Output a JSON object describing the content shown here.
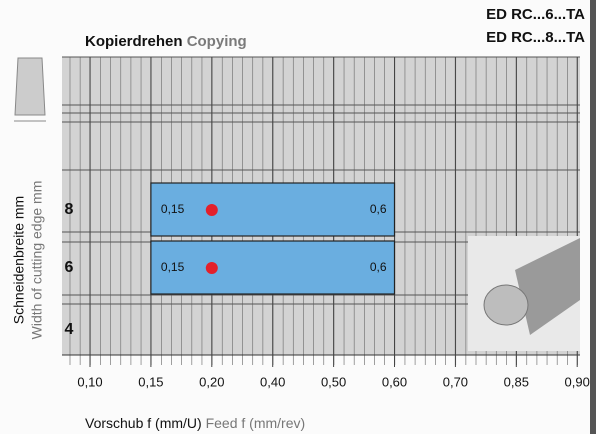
{
  "chart_data": {
    "type": "range",
    "header": [
      "ED RC...6...TA",
      "ED RC...8...TA"
    ],
    "title": "Kopierdrehen",
    "subtitle": "Copying",
    "y_label": "Schneidenbreite mm",
    "y_label_en": "Width of cutting edge mm",
    "x_label": "Vorschub f (mm/U)",
    "x_label_en": "Feed f (mm/rev)",
    "categories": [
      "8",
      "6",
      "4"
    ],
    "start": {
      "values": [
        0.15,
        0.15,
        null
      ],
      "value_labels": [
        "0,15",
        "0,15",
        null
      ]
    },
    "end": {
      "values": [
        0.6,
        0.6,
        null
      ],
      "value_labels": [
        "0,6",
        "0,6",
        null
      ]
    },
    "recommended": [
      0.2,
      0.2,
      null
    ],
    "color": "#6aaee0",
    "point_color": "#e3202b",
    "xlim": [
      0.1,
      0.9
    ],
    "xticks": [
      {
        "value": 0.1,
        "label": "0,10"
      },
      {
        "value": 0.15,
        "label": "0,15"
      },
      {
        "value": 0.2,
        "label": "0,20"
      },
      {
        "value": 0.4,
        "label": "0,40"
      },
      {
        "value": 0.5,
        "label": "0,50"
      },
      {
        "value": 0.6,
        "label": "0,60"
      },
      {
        "value": 0.7,
        "label": "0,70"
      },
      {
        "value": 0.85,
        "label": "0,85"
      },
      {
        "value": 0.9,
        "label": "0,90"
      }
    ]
  }
}
